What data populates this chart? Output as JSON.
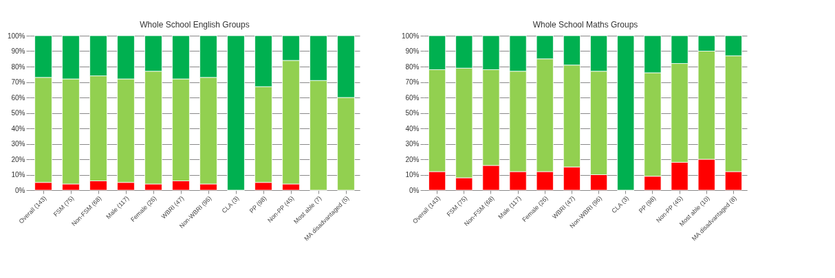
{
  "chart_data": [
    {
      "type": "bar",
      "title": "Whole School English Groups",
      "stacked": true,
      "grid": "y",
      "legend": false,
      "categories": [
        "Overall (143)",
        "FSM (75)",
        "Non-FSM (68)",
        "Male (117)",
        "Female (26)",
        "WBRI (47)",
        "Non-WBRI (96)",
        "CLA (3)",
        "PP (98)",
        "Non-PP (45)",
        "Most able (7)",
        "MA disadvantaged (5)"
      ],
      "series": [
        {
          "color": "#ff0000",
          "values": [
            5,
            4,
            6,
            5,
            4,
            6,
            4,
            0,
            5,
            4,
            0,
            0
          ]
        },
        {
          "color": "#92d050",
          "values": [
            68,
            68,
            68,
            67,
            73,
            66,
            69,
            0,
            62,
            80,
            71,
            60
          ]
        },
        {
          "color": "#00b050",
          "values": [
            27,
            28,
            26,
            28,
            23,
            28,
            27,
            100,
            33,
            16,
            29,
            40
          ]
        }
      ],
      "ylim": [
        0,
        100
      ],
      "yticks": [
        {
          "value": 0,
          "label": "0%"
        },
        {
          "value": 10,
          "label": "10%"
        },
        {
          "value": 20,
          "label": "20%"
        },
        {
          "value": 30,
          "label": "30%"
        },
        {
          "value": 40,
          "label": "40%"
        },
        {
          "value": 50,
          "label": "50%"
        },
        {
          "value": 60,
          "label": "60%"
        },
        {
          "value": 70,
          "label": "70%"
        },
        {
          "value": 80,
          "label": "80%"
        },
        {
          "value": 90,
          "label": "90%"
        },
        {
          "value": 100,
          "label": "100%"
        }
      ]
    },
    {
      "type": "bar",
      "title": "Whole School Maths Groups",
      "stacked": true,
      "grid": "y",
      "legend": false,
      "categories": [
        "Overall (143)",
        "FSM (75)",
        "Non-FSM (68)",
        "Male (117)",
        "Female (26)",
        "WBRI (47)",
        "Non-WBRI (96)",
        "CLA (3)",
        "PP (98)",
        "Non-PP (45)",
        "Most able (10)",
        "MA disadvantaged (8)"
      ],
      "series": [
        {
          "color": "#ff0000",
          "values": [
            12,
            8,
            16,
            12,
            12,
            15,
            10,
            0,
            9,
            18,
            20,
            12
          ]
        },
        {
          "color": "#92d050",
          "values": [
            66,
            71,
            62,
            65,
            73,
            66,
            67,
            0,
            67,
            64,
            70,
            75
          ]
        },
        {
          "color": "#00b050",
          "values": [
            22,
            21,
            22,
            23,
            15,
            19,
            23,
            100,
            24,
            18,
            10,
            13
          ]
        }
      ],
      "ylim": [
        0,
        100
      ],
      "yticks": [
        {
          "value": 0,
          "label": "0%"
        },
        {
          "value": 10,
          "label": "10%"
        },
        {
          "value": 20,
          "label": "20%"
        },
        {
          "value": 30,
          "label": "30%"
        },
        {
          "value": 40,
          "label": "40%"
        },
        {
          "value": 50,
          "label": "50%"
        },
        {
          "value": 60,
          "label": "60%"
        },
        {
          "value": 70,
          "label": "70%"
        },
        {
          "value": 80,
          "label": "80%"
        },
        {
          "value": 90,
          "label": "90%"
        },
        {
          "value": 100,
          "label": "100%"
        }
      ]
    }
  ]
}
